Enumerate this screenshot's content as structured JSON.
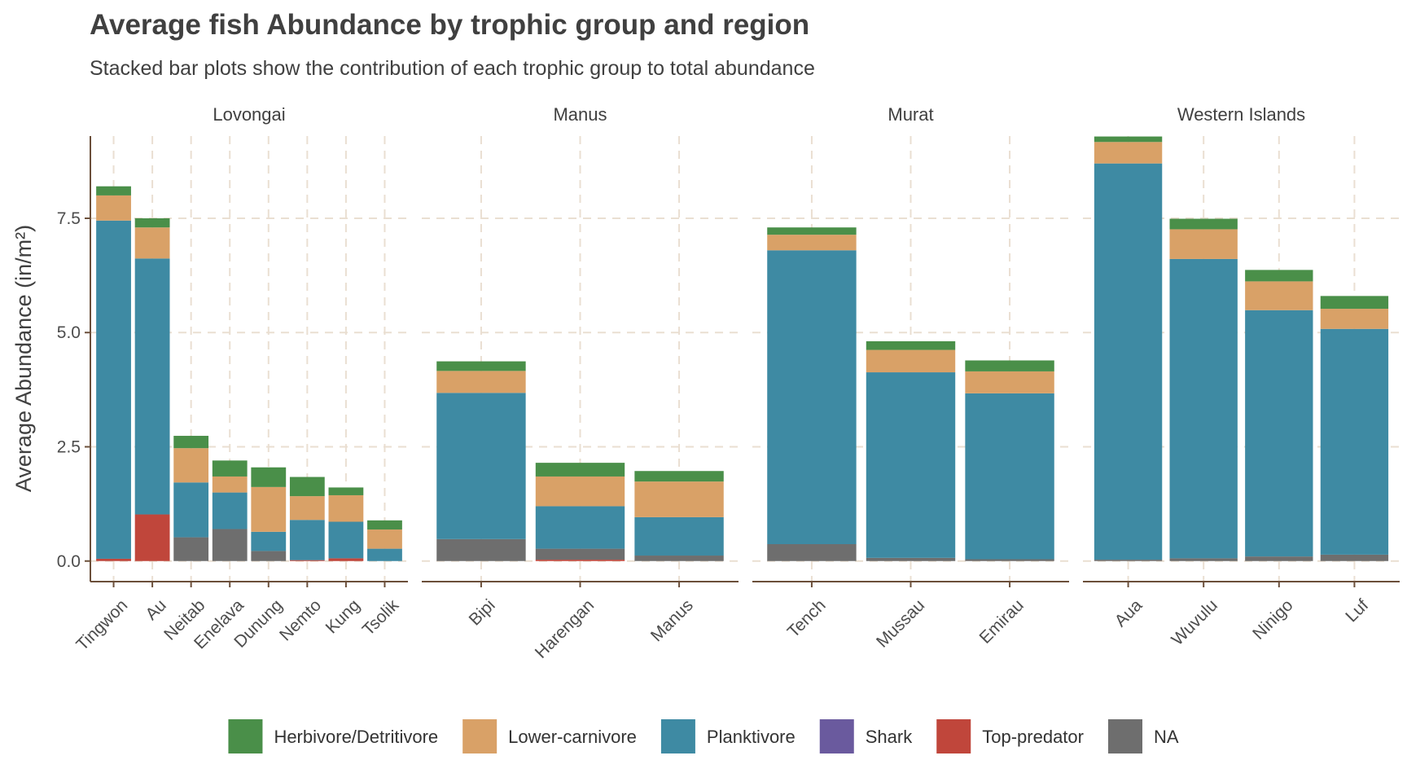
{
  "chart_data": {
    "type": "bar",
    "stacked": true,
    "faceted_by": "region",
    "title": "Average fish Abundance by trophic group and region",
    "subtitle": "Stacked bar plots show the contribution of each trophic group to total abundance",
    "ylabel": "Average Abundance (in/m²)",
    "xlabel": "",
    "ylim": [
      -0.45,
      9.3
    ],
    "yticks": [
      0.0,
      2.5,
      5.0,
      7.5
    ],
    "ytick_labels": [
      "0.0",
      "2.5",
      "5.0",
      "7.5"
    ],
    "grid": true,
    "legend_position": "bottom",
    "series": [
      {
        "key": "top",
        "name": "Top-predator",
        "color": "#c0463b"
      },
      {
        "key": "na",
        "name": "NA",
        "color": "#6e6e6e"
      },
      {
        "key": "plank",
        "name": "Planktivore",
        "color": "#3e8aa3"
      },
      {
        "key": "lower",
        "name": "Lower-carnivore",
        "color": "#d9a167"
      },
      {
        "key": "herb",
        "name": "Herbivore/Detritivore",
        "color": "#4a8f49"
      }
    ],
    "legend_order": [
      {
        "name": "Herbivore/Detritivore",
        "color": "#4a8f49"
      },
      {
        "name": "Lower-carnivore",
        "color": "#d9a167"
      },
      {
        "name": "Planktivore",
        "color": "#3e8aa3"
      },
      {
        "name": "Shark",
        "color": "#6a5a9e"
      },
      {
        "name": "Top-predator",
        "color": "#c0463b"
      },
      {
        "name": "NA",
        "color": "#6e6e6e"
      }
    ],
    "facets": [
      {
        "region": "Lovongai",
        "sites": [
          {
            "name": "Tingwon",
            "top": 0.05,
            "na": 0.0,
            "plank": 7.4,
            "lower": 0.55,
            "herb": 0.2
          },
          {
            "name": "Au",
            "top": 1.02,
            "na": 0.0,
            "plank": 5.6,
            "lower": 0.68,
            "herb": 0.2
          },
          {
            "name": "Neitab",
            "top": 0.0,
            "na": 0.52,
            "plank": 1.2,
            "lower": 0.75,
            "herb": 0.27
          },
          {
            "name": "Enelava",
            "top": 0.0,
            "na": 0.7,
            "plank": 0.8,
            "lower": 0.35,
            "herb": 0.35
          },
          {
            "name": "Dunung",
            "top": 0.0,
            "na": 0.22,
            "plank": 0.42,
            "lower": 0.98,
            "herb": 0.43
          },
          {
            "name": "Nemto",
            "top": 0.02,
            "na": 0.0,
            "plank": 0.88,
            "lower": 0.52,
            "herb": 0.42
          },
          {
            "name": "Kung",
            "top": 0.06,
            "na": 0.0,
            "plank": 0.8,
            "lower": 0.58,
            "herb": 0.17
          },
          {
            "name": "Tsolik",
            "top": 0.0,
            "na": 0.0,
            "plank": 0.27,
            "lower": 0.42,
            "herb": 0.2
          }
        ]
      },
      {
        "region": "Manus",
        "sites": [
          {
            "name": "Bipi",
            "top": 0.0,
            "na": 0.48,
            "plank": 3.2,
            "lower": 0.48,
            "herb": 0.21
          },
          {
            "name": "Harengan",
            "top": 0.03,
            "na": 0.24,
            "plank": 0.93,
            "lower": 0.65,
            "herb": 0.3
          },
          {
            "name": "Manus",
            "top": 0.0,
            "na": 0.12,
            "plank": 0.84,
            "lower": 0.78,
            "herb": 0.23
          }
        ]
      },
      {
        "region": "Murat",
        "sites": [
          {
            "name": "Tench",
            "top": 0.0,
            "na": 0.37,
            "plank": 6.43,
            "lower": 0.34,
            "herb": 0.16
          },
          {
            "name": "Mussau",
            "top": 0.0,
            "na": 0.07,
            "plank": 4.06,
            "lower": 0.49,
            "herb": 0.19
          },
          {
            "name": "Emirau",
            "top": 0.0,
            "na": 0.04,
            "plank": 3.63,
            "lower": 0.48,
            "herb": 0.24
          }
        ]
      },
      {
        "region": "Western Islands",
        "sites": [
          {
            "name": "Aua",
            "top": 0.0,
            "na": 0.03,
            "plank": 8.67,
            "lower": 0.47,
            "herb": 0.12
          },
          {
            "name": "Wuvulu",
            "top": 0.0,
            "na": 0.06,
            "plank": 6.55,
            "lower": 0.65,
            "herb": 0.23
          },
          {
            "name": "Ninigo",
            "top": 0.0,
            "na": 0.1,
            "plank": 5.39,
            "lower": 0.63,
            "herb": 0.25
          },
          {
            "name": "Luf",
            "top": 0.0,
            "na": 0.14,
            "plank": 4.94,
            "lower": 0.44,
            "herb": 0.28
          }
        ]
      }
    ]
  }
}
